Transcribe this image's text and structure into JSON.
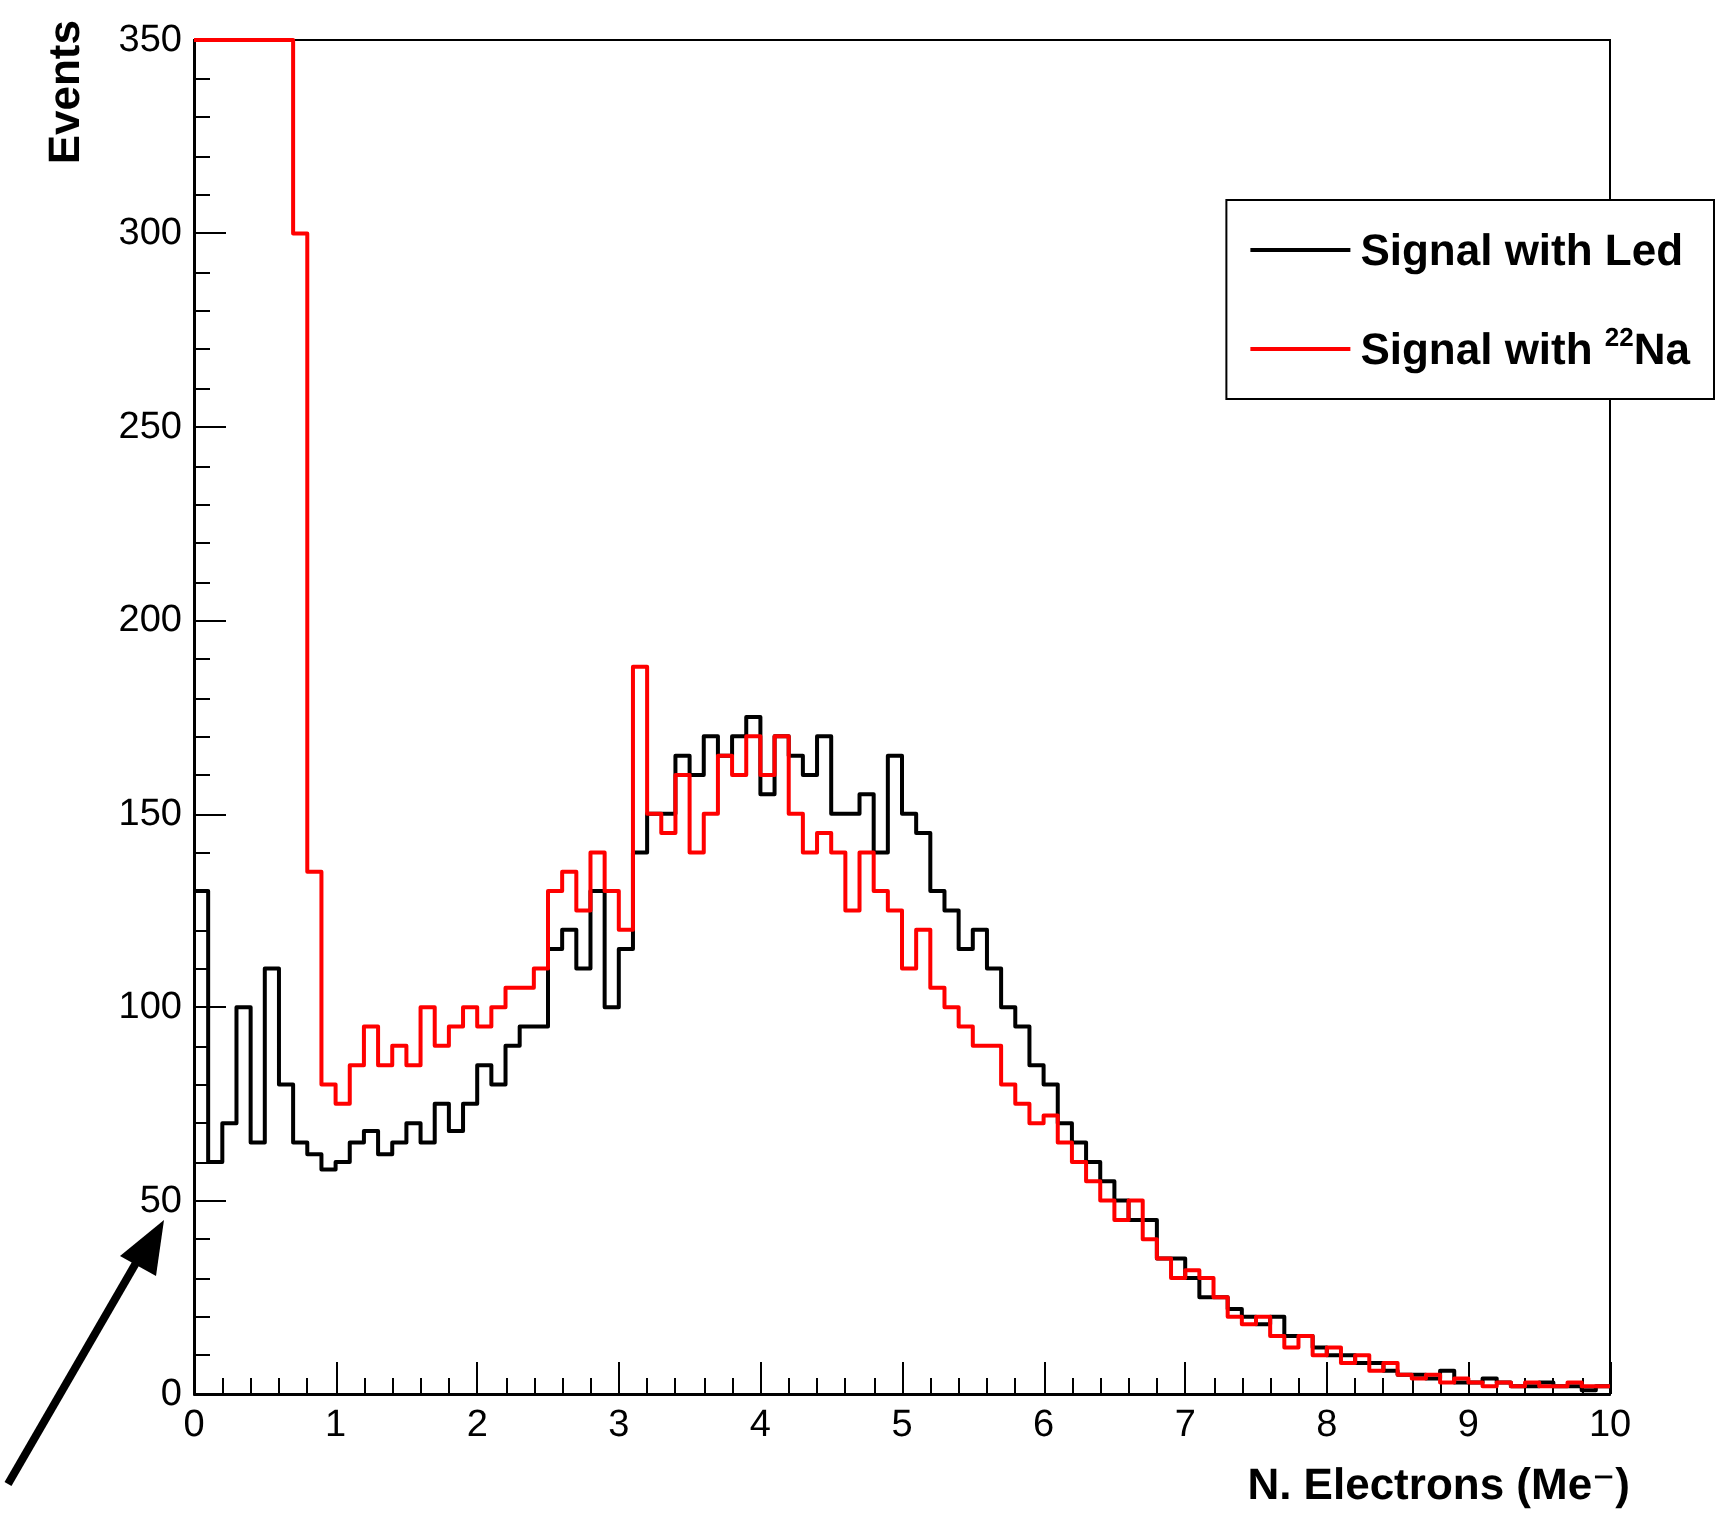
{
  "chart_data": {
    "type": "histogram",
    "xlabel": "N. Electrons (Me⁻)",
    "ylabel": "Events",
    "bins": [
      0,
      0.1,
      0.2,
      0.3,
      0.4,
      0.5,
      0.6,
      0.7,
      0.8,
      0.9,
      1,
      1.1,
      1.2,
      1.3,
      1.4,
      1.5,
      1.6,
      1.7,
      1.8,
      1.9,
      2,
      2.1,
      2.2,
      2.3,
      2.4,
      2.5,
      2.6,
      2.7,
      2.8,
      2.9,
      3,
      3.1,
      3.2,
      3.3,
      3.4,
      3.5,
      3.6,
      3.7,
      3.8,
      3.9,
      4,
      4.1,
      4.2,
      4.3,
      4.4,
      4.5,
      4.6,
      4.7,
      4.8,
      4.9,
      5,
      5.1,
      5.2,
      5.3,
      5.4,
      5.5,
      5.6,
      5.7,
      5.8,
      5.9,
      6,
      6.1,
      6.2,
      6.3,
      6.4,
      6.5,
      6.6,
      6.7,
      6.8,
      6.9,
      7,
      7.1,
      7.2,
      7.3,
      7.4,
      7.5,
      7.6,
      7.7,
      7.8,
      7.9,
      8,
      8.1,
      8.2,
      8.3,
      8.4,
      8.5,
      8.6,
      8.7,
      8.8,
      8.9,
      9,
      9.1,
      9.2,
      9.3,
      9.4,
      9.5,
      9.6,
      9.7,
      9.8,
      9.9,
      10
    ],
    "series": [
      {
        "name": "Signal with Led",
        "color": "#000000",
        "values": [
          130,
          60,
          70,
          100,
          65,
          110,
          80,
          65,
          62,
          58,
          60,
          65,
          68,
          62,
          65,
          70,
          65,
          75,
          68,
          75,
          85,
          80,
          90,
          95,
          95,
          115,
          120,
          110,
          130,
          100,
          115,
          140,
          150,
          150,
          165,
          160,
          170,
          165,
          170,
          175,
          155,
          170,
          165,
          160,
          170,
          150,
          150,
          155,
          140,
          165,
          150,
          145,
          130,
          125,
          115,
          120,
          110,
          100,
          95,
          85,
          80,
          70,
          65,
          60,
          55,
          50,
          45,
          45,
          35,
          35,
          30,
          25,
          25,
          22,
          20,
          18,
          20,
          15,
          15,
          12,
          10,
          10,
          8,
          8,
          6,
          5,
          5,
          4,
          6,
          3,
          3,
          4,
          3,
          2,
          2,
          3,
          2,
          2,
          1,
          2
        ]
      },
      {
        "name": "Signal with $^{22}$Na",
        "color": "#ff0000",
        "values": [
          350,
          350,
          350,
          350,
          350,
          350,
          350,
          300,
          135,
          80,
          75,
          85,
          95,
          85,
          90,
          85,
          100,
          90,
          95,
          100,
          95,
          100,
          105,
          105,
          110,
          130,
          135,
          125,
          140,
          130,
          120,
          188,
          150,
          145,
          160,
          140,
          150,
          165,
          160,
          170,
          160,
          170,
          150,
          140,
          145,
          140,
          125,
          140,
          130,
          125,
          110,
          120,
          105,
          100,
          95,
          90,
          90,
          80,
          75,
          70,
          72,
          65,
          60,
          55,
          50,
          45,
          50,
          40,
          35,
          30,
          32,
          30,
          25,
          20,
          18,
          20,
          15,
          12,
          15,
          10,
          12,
          8,
          10,
          6,
          8,
          5,
          4,
          5,
          3,
          4,
          3,
          2,
          3,
          2,
          3,
          2,
          2,
          3,
          2,
          2
        ]
      }
    ],
    "xlim": [
      0,
      10
    ],
    "xticks": [
      0,
      1,
      2,
      3,
      4,
      5,
      6,
      7,
      8,
      9,
      10
    ],
    "ylim": [
      0,
      350
    ],
    "yticks": [
      0,
      50,
      100,
      150,
      200,
      250,
      300,
      350
    ],
    "legend": "top right"
  }
}
